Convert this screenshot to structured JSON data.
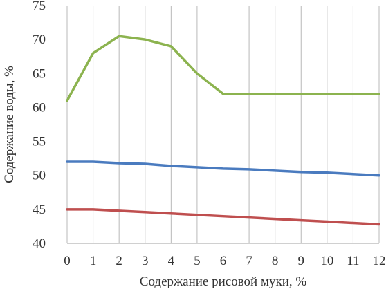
{
  "chart_data": {
    "type": "line",
    "title": "",
    "xlabel": "Содержание рисовой муки, %",
    "ylabel": "Содержание воды, %",
    "x": [
      0,
      1,
      2,
      3,
      4,
      5,
      6,
      7,
      8,
      9,
      10,
      11,
      12
    ],
    "ylim": [
      40,
      75
    ],
    "yticks": [
      40,
      45,
      50,
      55,
      60,
      65,
      70,
      75
    ],
    "grid": {
      "vertical": true,
      "horizontal": false
    },
    "legend": "none",
    "series": [
      {
        "color": "#8cb34f",
        "values": [
          61,
          68,
          70.5,
          70,
          69,
          65,
          62,
          62,
          62,
          62,
          62,
          62,
          62
        ]
      },
      {
        "color": "#4a7bbf",
        "values": [
          52,
          52,
          51.8,
          51.7,
          51.4,
          51.2,
          51,
          50.9,
          50.7,
          50.5,
          50.4,
          50.2,
          50
        ]
      },
      {
        "color": "#bf4f4f",
        "values": [
          45,
          45,
          44.8,
          44.6,
          44.4,
          44.2,
          44,
          43.8,
          43.6,
          43.4,
          43.2,
          43,
          42.8
        ]
      }
    ]
  }
}
